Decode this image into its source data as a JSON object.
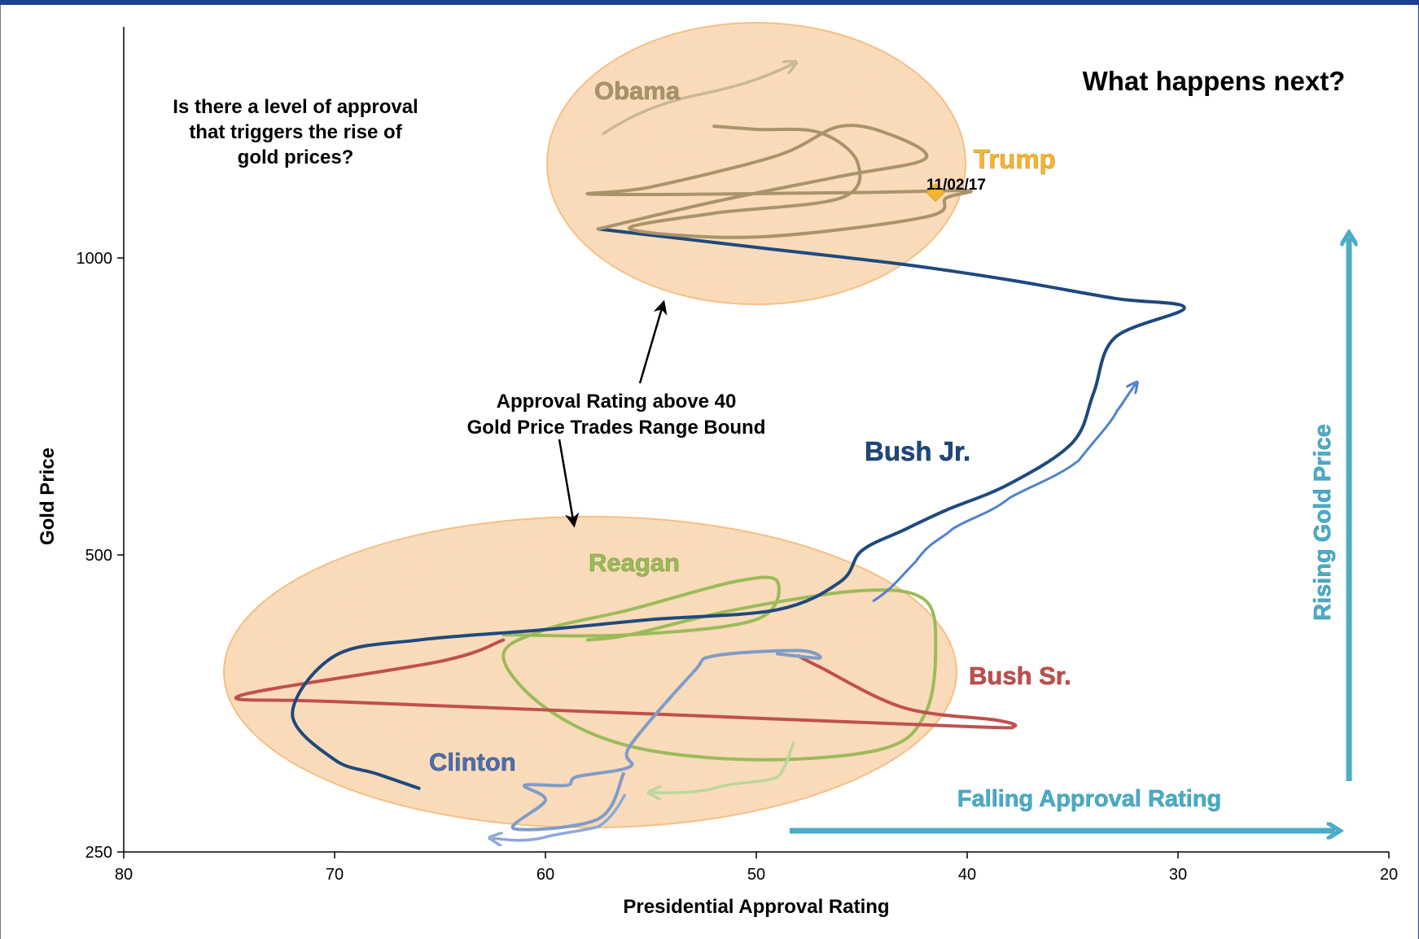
{
  "chart_data": {
    "type": "line",
    "xlabel": "Presidential Approval Rating",
    "ylabel": "Gold Price",
    "xlim": [
      80,
      20
    ],
    "ylim": [
      250,
      1450
    ],
    "ytick_labels": [
      "250",
      "500",
      "1000"
    ],
    "xtick_labels": [
      "80",
      "70",
      "60",
      "50",
      "40",
      "30",
      "20"
    ],
    "grid": false,
    "series": [
      {
        "name": "Reagan",
        "color": "#9bbb59",
        "x": [
          62,
          56,
          50,
          49,
          51,
          56,
          60,
          62,
          60,
          56,
          50,
          44,
          42,
          41.5,
          42,
          45,
          51,
          56,
          58
        ],
        "y": [
          415,
          415,
          430,
          470,
          470,
          440,
          420,
          395,
          350,
          320,
          310,
          318,
          345,
          400,
          450,
          460,
          440,
          415,
          410
        ]
      },
      {
        "name": "Bush Sr.",
        "color": "#c0504d",
        "x": [
          62,
          65,
          74.5,
          70,
          55,
          40,
          37.8,
          38.6,
          43,
          47,
          48
        ],
        "y": [
          410,
          390,
          360,
          355,
          345,
          335,
          335,
          340,
          350,
          385,
          395
        ]
      },
      {
        "name": "Clinton",
        "color": "#7f9cc8",
        "x": [
          56.3,
          57.5,
          61.5,
          60,
          61,
          59,
          58.5,
          56,
          56,
          53,
          52,
          48,
          47,
          49
        ],
        "y": [
          300,
          270,
          264,
          282,
          292,
          292,
          298,
          305,
          320,
          380,
          395,
          400,
          393,
          397
        ]
      },
      {
        "name": "Bush Jr.",
        "color": "#1f497d",
        "x": [
          66,
          68,
          70,
          72,
          70,
          66,
          60,
          55,
          49,
          46,
          45,
          43,
          41,
          38,
          35,
          34,
          33,
          29.7,
          33,
          38,
          43,
          50,
          57.5
        ],
        "y": [
          290,
          300,
          310,
          345,
          395,
          410,
          420,
          430,
          440,
          470,
          505,
          530,
          555,
          590,
          650,
          730,
          830,
          890,
          910,
          950,
          985,
          1025,
          1070
        ]
      },
      {
        "name": "Obama",
        "color": "#a8946a",
        "x": [
          57.5,
          52,
          46,
          42,
          43.5,
          46,
          49,
          55,
          57.5,
          45,
          40,
          41,
          42,
          50,
          56,
          52,
          46,
          45.2,
          47,
          50,
          52
        ],
        "y": [
          1070,
          1140,
          1210,
          1260,
          1330,
          1360,
          1270,
          1180,
          1160,
          1165,
          1170,
          1150,
          1100,
          1050,
          1070,
          1110,
          1150,
          1250,
          1340,
          1350,
          1360
        ]
      }
    ],
    "highlight_point": {
      "label": "Trump",
      "date": "11/02/17",
      "x": 41.5,
      "y": 1165,
      "color": "#f6b434"
    }
  },
  "annotations": {
    "question": [
      "Is there a level of approval",
      "that triggers the rise of",
      "gold prices?"
    ],
    "range_bound": [
      "Approval Rating above 40",
      "Gold Price Trades Range Bound"
    ],
    "next": "What happens next?",
    "falling": "Falling Approval Rating",
    "rising": "Rising Gold Price"
  },
  "colors": {
    "ellipse_fill": "#fbd9b4",
    "ellipse_stroke": "#f5b97a",
    "arrow_teal": "#4bacc6",
    "arrow_blue": "#4f81d0",
    "arrow_green": "#b9d89a",
    "arrow_tan": "#c9b895"
  }
}
